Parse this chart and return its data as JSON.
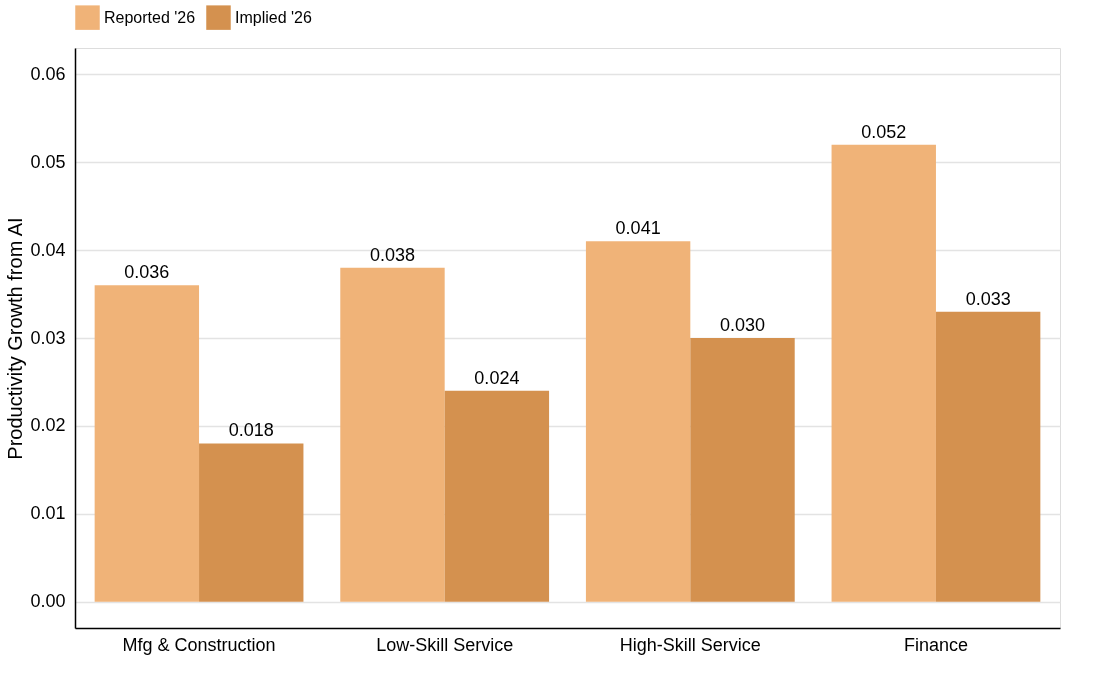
{
  "chart_data": {
    "type": "bar",
    "ylabel": "Productivity Growth from AI",
    "categories": [
      "Mfg & Construction",
      "Low-Skill Service",
      "High-Skill Service",
      "Finance"
    ],
    "series": [
      {
        "name": "Reported '26",
        "color": "#f0b378",
        "values": [
          0.036,
          0.038,
          0.041,
          0.052
        ],
        "value_labels": [
          "0.036",
          "0.038",
          "0.041",
          "0.052"
        ]
      },
      {
        "name": "Implied '26",
        "color": "#d4914f",
        "values": [
          0.018,
          0.024,
          0.03,
          0.033
        ],
        "value_labels": [
          "0.018",
          "0.024",
          "0.030",
          "0.033"
        ]
      }
    ],
    "ylim": [
      -0.003,
      0.063
    ],
    "yticks": [
      {
        "value": 0,
        "label": "0.00"
      },
      0.01,
      0.02,
      0.03,
      0.04,
      0.05,
      0.06
    ],
    "grid": "y",
    "legend": "top"
  }
}
